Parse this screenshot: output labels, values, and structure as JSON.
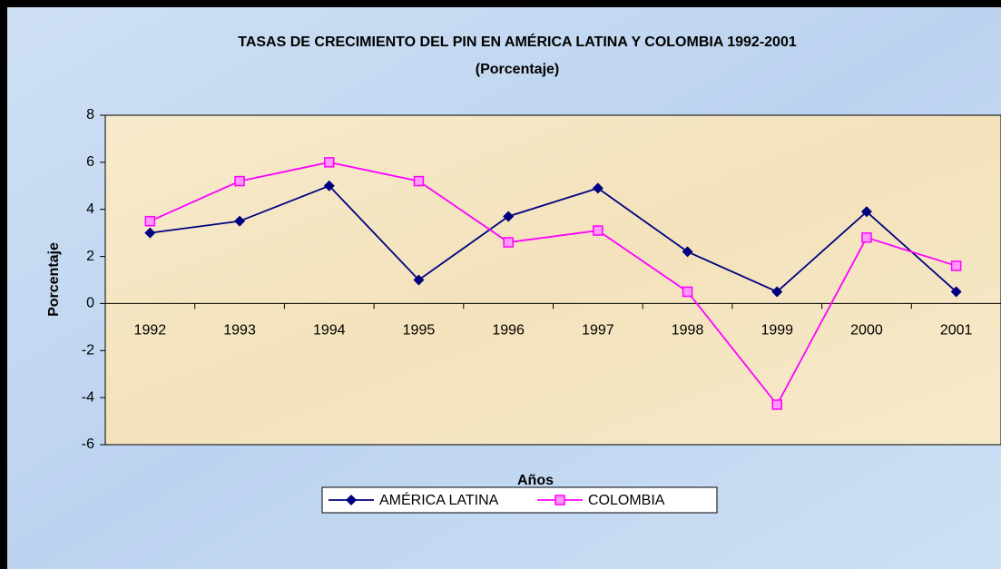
{
  "chart_data": {
    "type": "line",
    "title": "TASAS DE CRECIMIENTO DEL PIN EN AMÉRICA LATINA Y COLOMBIA 1992-2001",
    "subtitle": "(Porcentaje)",
    "x_label": "Años",
    "y_label": "Porcentaje",
    "categories": [
      "1992",
      "1993",
      "1994",
      "1995",
      "1996",
      "1997",
      "1998",
      "1999",
      "2000",
      "2001"
    ],
    "series": [
      {
        "name": "AMÉRICA LATINA",
        "color": "#000080",
        "marker": "diamond",
        "values": [
          3.0,
          3.5,
          5.0,
          1.0,
          3.7,
          4.9,
          2.2,
          0.5,
          3.9,
          0.5
        ]
      },
      {
        "name": "COLOMBIA",
        "color": "#ff00ff",
        "marker": "square",
        "values": [
          3.5,
          5.2,
          6.0,
          5.2,
          2.6,
          3.1,
          0.5,
          -4.3,
          2.8,
          1.6
        ]
      }
    ],
    "ylim": [
      -6,
      8
    ],
    "yticks": [
      -6,
      -4,
      -2,
      0,
      2,
      4,
      6,
      8
    ],
    "legend": "bottom"
  }
}
